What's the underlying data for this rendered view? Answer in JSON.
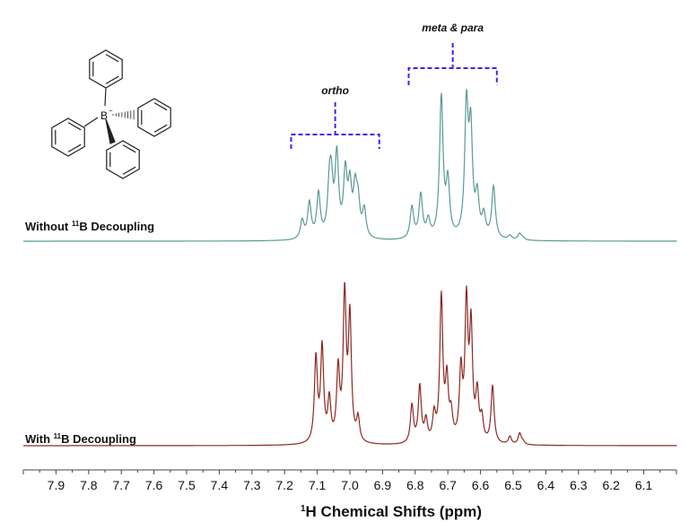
{
  "chart_data": {
    "type": "line",
    "title": "",
    "xlabel": "¹H Chemical Shifts (ppm)",
    "ylabel": "",
    "xlim": [
      8.0,
      6.0
    ],
    "x_reversed": true,
    "y_axis_shown": false,
    "grid": false,
    "x_ticks": [
      "7.9",
      "7.8",
      "7.7",
      "7.6",
      "7.5",
      "7.4",
      "7.3",
      "7.2",
      "7.1",
      "7.0",
      "6.9",
      "6.8",
      "6.7",
      "6.6",
      "6.5",
      "6.4",
      "6.3",
      "6.2",
      "6.1"
    ],
    "series": [
      {
        "name": "Without ¹¹B Decoupling",
        "color": "#5b9a96",
        "peaks_ppm_relative_intensity": [
          [
            7.146,
            14
          ],
          [
            7.124,
            25
          ],
          [
            7.096,
            31
          ],
          [
            7.063,
            47
          ],
          [
            7.057,
            51
          ],
          [
            7.04,
            58
          ],
          [
            7.014,
            49
          ],
          [
            7.0,
            43
          ],
          [
            6.984,
            41
          ],
          [
            6.975,
            34
          ],
          [
            6.956,
            22
          ],
          [
            6.81,
            22
          ],
          [
            6.783,
            30
          ],
          [
            6.76,
            16
          ],
          [
            6.72,
            90
          ],
          [
            6.7,
            43
          ],
          [
            6.643,
            92
          ],
          [
            6.63,
            81
          ],
          [
            6.61,
            35
          ],
          [
            6.59,
            20
          ],
          [
            6.56,
            34
          ],
          [
            6.51,
            4
          ],
          [
            6.48,
            5
          ],
          [
            6.47,
            3
          ]
        ]
      },
      {
        "name": "With ¹¹B Decoupling",
        "color": "#8b2a22",
        "peaks_ppm_relative_intensity": [
          [
            7.104,
            57
          ],
          [
            7.085,
            64
          ],
          [
            7.063,
            33
          ],
          [
            7.036,
            53
          ],
          [
            7.016,
            100
          ],
          [
            7.0,
            86
          ],
          [
            6.975,
            20
          ],
          [
            6.81,
            26
          ],
          [
            6.786,
            38
          ],
          [
            6.767,
            19
          ],
          [
            6.742,
            24
          ],
          [
            6.72,
            94
          ],
          [
            6.703,
            49
          ],
          [
            6.69,
            27
          ],
          [
            6.66,
            54
          ],
          [
            6.643,
            97
          ],
          [
            6.629,
            83
          ],
          [
            6.61,
            39
          ],
          [
            6.596,
            22
          ],
          [
            6.563,
            37
          ],
          [
            6.51,
            6
          ],
          [
            6.48,
            8
          ],
          [
            6.47,
            4
          ]
        ]
      }
    ],
    "annotations": [
      {
        "text": "ortho",
        "range_ppm": [
          7.18,
          6.91
        ]
      },
      {
        "text": "meta & para",
        "range_ppm": [
          6.82,
          6.55
        ]
      }
    ],
    "bracket_color": "#3a22f0"
  },
  "labels": {
    "without": {
      "pre": "Without ",
      "sup": "11",
      "post": "B Decoupling"
    },
    "with": {
      "pre": "With ",
      "sup": "11",
      "post": "B Decoupling"
    },
    "axis_title": {
      "sup": "1",
      "post": "H Chemical Shifts (ppm)"
    }
  },
  "molecule": {
    "boron_label": "B",
    "charge": "−"
  }
}
